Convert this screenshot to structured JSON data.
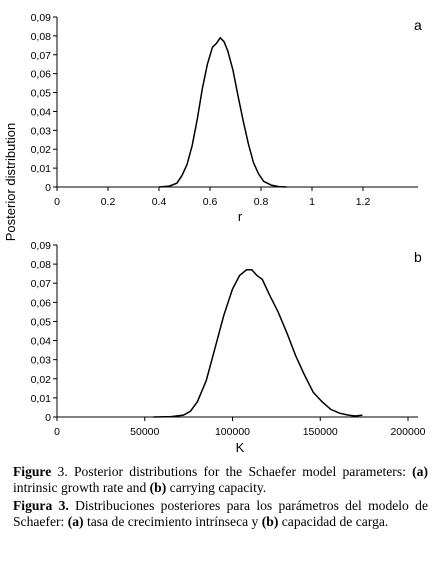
{
  "shared_ylabel": "Posterior distribution",
  "chart_data": [
    {
      "type": "line",
      "panel_label": "a",
      "xlabel": "r",
      "ylabel": "Posterior distribution",
      "xlim": [
        0,
        1.2
      ],
      "ylim": [
        0,
        0.09
      ],
      "x_ticks": [
        "0",
        "0.2",
        "0.4",
        "0.6",
        "0.8",
        "1",
        "1.2"
      ],
      "y_ticks": [
        "0",
        "0,01",
        "0,02",
        "0,03",
        "0,04",
        "0,05",
        "0,06",
        "0,07",
        "0,08",
        "0,09"
      ],
      "grid": false,
      "series": [
        {
          "x": [
            0.4,
            0.44,
            0.47,
            0.49,
            0.51,
            0.53,
            0.55,
            0.57,
            0.59,
            0.61,
            0.625,
            0.64,
            0.655,
            0.67,
            0.69,
            0.71,
            0.73,
            0.75,
            0.77,
            0.79,
            0.81,
            0.84,
            0.87,
            0.9
          ],
          "y": [
            0,
            0.0005,
            0.002,
            0.006,
            0.012,
            0.022,
            0.036,
            0.052,
            0.065,
            0.074,
            0.076,
            0.079,
            0.077,
            0.072,
            0.062,
            0.048,
            0.035,
            0.023,
            0.013,
            0.007,
            0.003,
            0.001,
            0.0002,
            0
          ]
        }
      ]
    },
    {
      "type": "line",
      "panel_label": "b",
      "xlabel": "K",
      "ylabel": "Posterior distribution",
      "xlim": [
        0,
        200000
      ],
      "ylim": [
        0,
        0.09
      ],
      "x_ticks": [
        "0",
        "50000",
        "100000",
        "150000",
        "200000"
      ],
      "y_ticks": [
        "0",
        "0,01",
        "0,02",
        "0,03",
        "0,04",
        "0,05",
        "0,06",
        "0,07",
        "0,08",
        "0,09"
      ],
      "grid": false,
      "series": [
        {
          "x": [
            55000,
            65000,
            72000,
            76000,
            80000,
            85000,
            90000,
            95000,
            100000,
            104000,
            108000,
            111000,
            114000,
            117000,
            121000,
            126000,
            131000,
            136000,
            141000,
            146000,
            151000,
            156000,
            161000,
            166000,
            170000,
            174000
          ],
          "y": [
            0,
            0.0002,
            0.001,
            0.003,
            0.008,
            0.019,
            0.036,
            0.053,
            0.067,
            0.074,
            0.077,
            0.077,
            0.074,
            0.072,
            0.064,
            0.055,
            0.044,
            0.032,
            0.022,
            0.013,
            0.008,
            0.004,
            0.002,
            0.001,
            0.0005,
            0.001
          ]
        }
      ]
    }
  ],
  "caption": {
    "en_label": "Figure",
    "en_num": " 3",
    "en_text": ". Posterior distributions for the Schaefer model parameters: ",
    "en_a": "(a)",
    "en_mid": " intrinsic growth rate and ",
    "en_b": "(b)",
    "en_end": " carrying capacity.",
    "es_label": "Figura 3.",
    "es_text": " Distribuciones posteriores para los parámetros del modelo de Schaefer: ",
    "es_a": "(a)",
    "es_mid": " tasa de crecimiento intrínseca y ",
    "es_b": "(b)",
    "es_end": " capacidad de carga."
  }
}
